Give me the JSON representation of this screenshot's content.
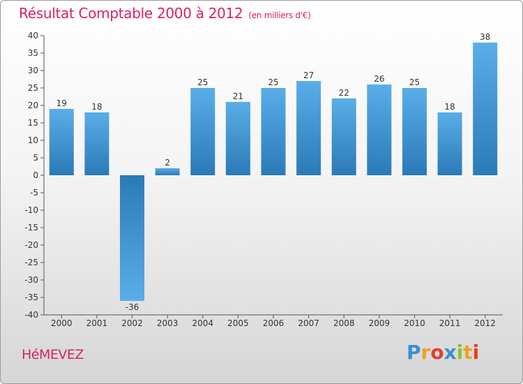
{
  "chart_data": {
    "type": "bar",
    "title": "Résultat Comptable 2000 à 2012",
    "subtitle": "(en milliers d'€)",
    "categories": [
      "2000",
      "2001",
      "2002",
      "2003",
      "2004",
      "2005",
      "2006",
      "2007",
      "2008",
      "2009",
      "2010",
      "2011",
      "2012"
    ],
    "values": [
      19,
      18,
      -36,
      2,
      25,
      21,
      25,
      27,
      22,
      26,
      25,
      18,
      38
    ],
    "ylim": [
      -40,
      40
    ],
    "yticks": [
      40,
      35,
      30,
      25,
      20,
      15,
      10,
      5,
      0,
      -5,
      -10,
      -15,
      -20,
      -25,
      -30,
      -35,
      -40
    ],
    "xlabel": "",
    "ylabel": "",
    "grid": false
  },
  "footer": {
    "commune": "HéMEVEZ",
    "logo_letters": [
      "P",
      "r",
      "o",
      "x",
      "i",
      "t",
      "i"
    ],
    "logo_colors": [
      "#3a8fd6",
      "#f0a020",
      "#e0402a",
      "#3a8fd6",
      "#90c030",
      "#f0a020",
      "#e0402a"
    ]
  },
  "colors": {
    "accent": "#d8245c",
    "bar_dark": "#2a7ab8",
    "bar_light": "#5aaee8",
    "axis": "#555555"
  }
}
